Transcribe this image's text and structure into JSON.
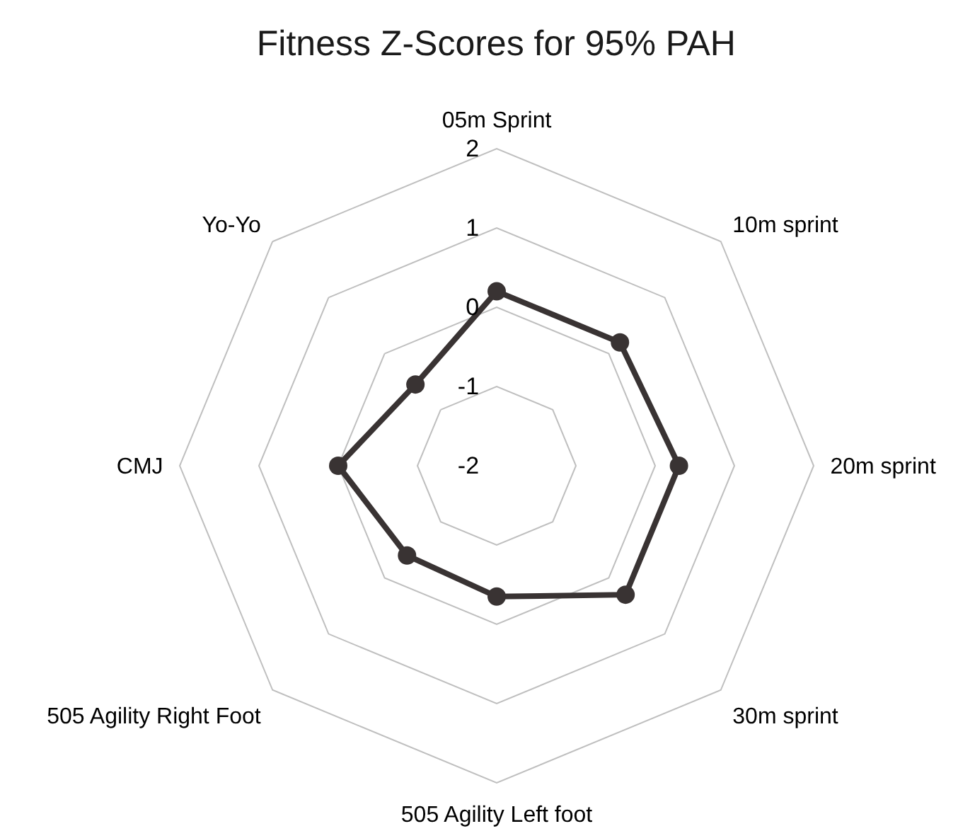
{
  "chart_data": {
    "type": "radar",
    "title": "Fitness Z-Scores for 95% PAH",
    "categories": [
      "05m Sprint",
      "10m sprint",
      "20m sprint",
      "30m sprint",
      "505 Agility Left foot",
      "505 Agility Right Foot",
      "CMJ",
      "Yo-Yo"
    ],
    "series": [
      {
        "color": "#393333",
        "values": [
          0.2,
          0.2,
          0.3,
          0.3,
          -0.35,
          -0.4,
          0.0,
          -0.55
        ]
      }
    ],
    "ylim": [
      -2,
      2
    ],
    "yticks": [
      -2,
      -1,
      0,
      1,
      2
    ],
    "grid": "y",
    "marker": "circle",
    "line_style": "solid"
  }
}
